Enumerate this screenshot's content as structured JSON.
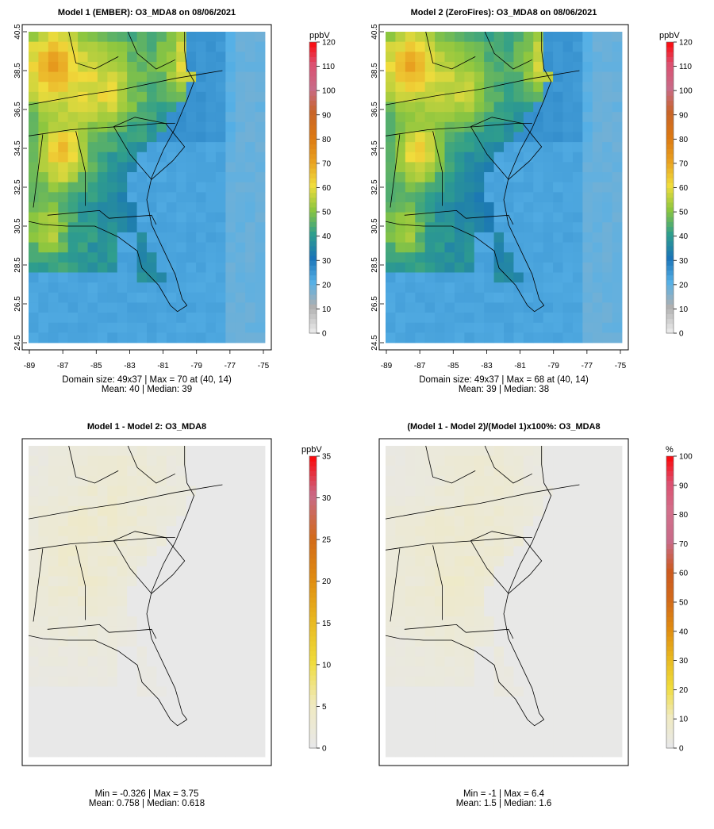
{
  "chart_data": [
    {
      "type": "heatmap",
      "title": "Model 1 (EMBER): O3_MDA8 on 08/06/2021",
      "variable": "O3_MDA8",
      "date": "08/06/2021",
      "field": "base",
      "x_ticks": [
        "-89",
        "-87",
        "-85",
        "-83",
        "-81",
        "-79",
        "-77",
        "-75"
      ],
      "y_ticks": [
        "24.5",
        "26.5",
        "28.5",
        "30.5",
        "32.5",
        "34.5",
        "36.5",
        "38.5",
        "40.5"
      ],
      "xlim": [
        -89,
        -75
      ],
      "ylim": [
        24.5,
        40.5
      ],
      "domain_size": "49x37",
      "stats_line1": "Domain size: 49x37 | Max = 70 at (40, 14)",
      "stats_line2": "Mean: 40 |  Median: 39",
      "max": 70,
      "mean": 40,
      "median": 39,
      "colorbar": {
        "unit": "ppbV",
        "range": [
          0,
          120
        ],
        "ticks": [
          "0",
          "10",
          "20",
          "30",
          "40",
          "50",
          "60",
          "70",
          "80",
          "90",
          "100",
          "110",
          "120"
        ],
        "colors": [
          "#e8e8e8",
          "#b0b0b0",
          "#56b0e6",
          "#1a74b8",
          "#2f9e8c",
          "#8cc63f",
          "#f0dc3c",
          "#e8a020",
          "#dc7812",
          "#c86428",
          "#c86a88",
          "#dc5070",
          "#ff0000"
        ]
      }
    },
    {
      "type": "heatmap",
      "title": "Model 2 (ZeroFires): O3_MDA8 on 08/06/2021",
      "variable": "O3_MDA8",
      "date": "08/06/2021",
      "field": "base_minus",
      "x_ticks": [
        "-89",
        "-87",
        "-85",
        "-83",
        "-81",
        "-79",
        "-77",
        "-75"
      ],
      "y_ticks": [
        "24.5",
        "26.5",
        "28.5",
        "30.5",
        "32.5",
        "34.5",
        "36.5",
        "38.5",
        "40.5"
      ],
      "xlim": [
        -89,
        -75
      ],
      "ylim": [
        24.5,
        40.5
      ],
      "domain_size": "49x37",
      "stats_line1": "Domain size: 49x37 | Max = 68 at (40, 14)",
      "stats_line2": "Mean: 39 |  Median: 38",
      "max": 68,
      "mean": 39,
      "median": 38,
      "colorbar": {
        "unit": "ppbV",
        "range": [
          0,
          120
        ],
        "ticks": [
          "0",
          "10",
          "20",
          "30",
          "40",
          "50",
          "60",
          "70",
          "80",
          "90",
          "100",
          "110",
          "120"
        ],
        "colors": [
          "#e8e8e8",
          "#b0b0b0",
          "#56b0e6",
          "#1a74b8",
          "#2f9e8c",
          "#8cc63f",
          "#f0dc3c",
          "#e8a020",
          "#dc7812",
          "#c86428",
          "#c86a88",
          "#dc5070",
          "#ff0000"
        ]
      }
    },
    {
      "type": "heatmap",
      "title": "Model 1 - Model 2: O3_MDA8",
      "variable": "O3_MDA8",
      "field": "diff",
      "stats_line1": "Min = -0.326 | Max = 3.75",
      "stats_line2": "Mean: 0.758 |  Median: 0.618",
      "min": -0.326,
      "max": 3.75,
      "mean": 0.758,
      "median": 0.618,
      "colorbar": {
        "unit": "ppbV",
        "range": [
          0,
          35
        ],
        "ticks": [
          "0",
          "5",
          "10",
          "15",
          "20",
          "25",
          "30",
          "35"
        ],
        "colors": [
          "#e8e8e8",
          "#f0eac0",
          "#f0dc3c",
          "#e8b820",
          "#e08c10",
          "#d26a1a",
          "#c86a88",
          "#ff0000"
        ]
      }
    },
    {
      "type": "heatmap",
      "title": "(Model 1 - Model 2)/(Model 1)x100%: O3_MDA8",
      "variable": "O3_MDA8",
      "field": "pct",
      "stats_line1": "Min = -1 | Max = 6.4",
      "stats_line2": "Mean: 1.5 |  Median: 1.6",
      "min": -1,
      "max": 6.4,
      "mean": 1.5,
      "median": 1.6,
      "colorbar": {
        "unit": "%",
        "range": [
          0,
          100
        ],
        "ticks": [
          "0",
          "10",
          "20",
          "30",
          "40",
          "50",
          "60",
          "70",
          "80",
          "90",
          "100"
        ],
        "colors": [
          "#e8e8e8",
          "#f0eac0",
          "#f0dc3c",
          "#e8b820",
          "#e08c10",
          "#d26a1a",
          "#cc5a20",
          "#c86a88",
          "#d2708c",
          "#dc5070",
          "#ff0000"
        ]
      }
    }
  ]
}
